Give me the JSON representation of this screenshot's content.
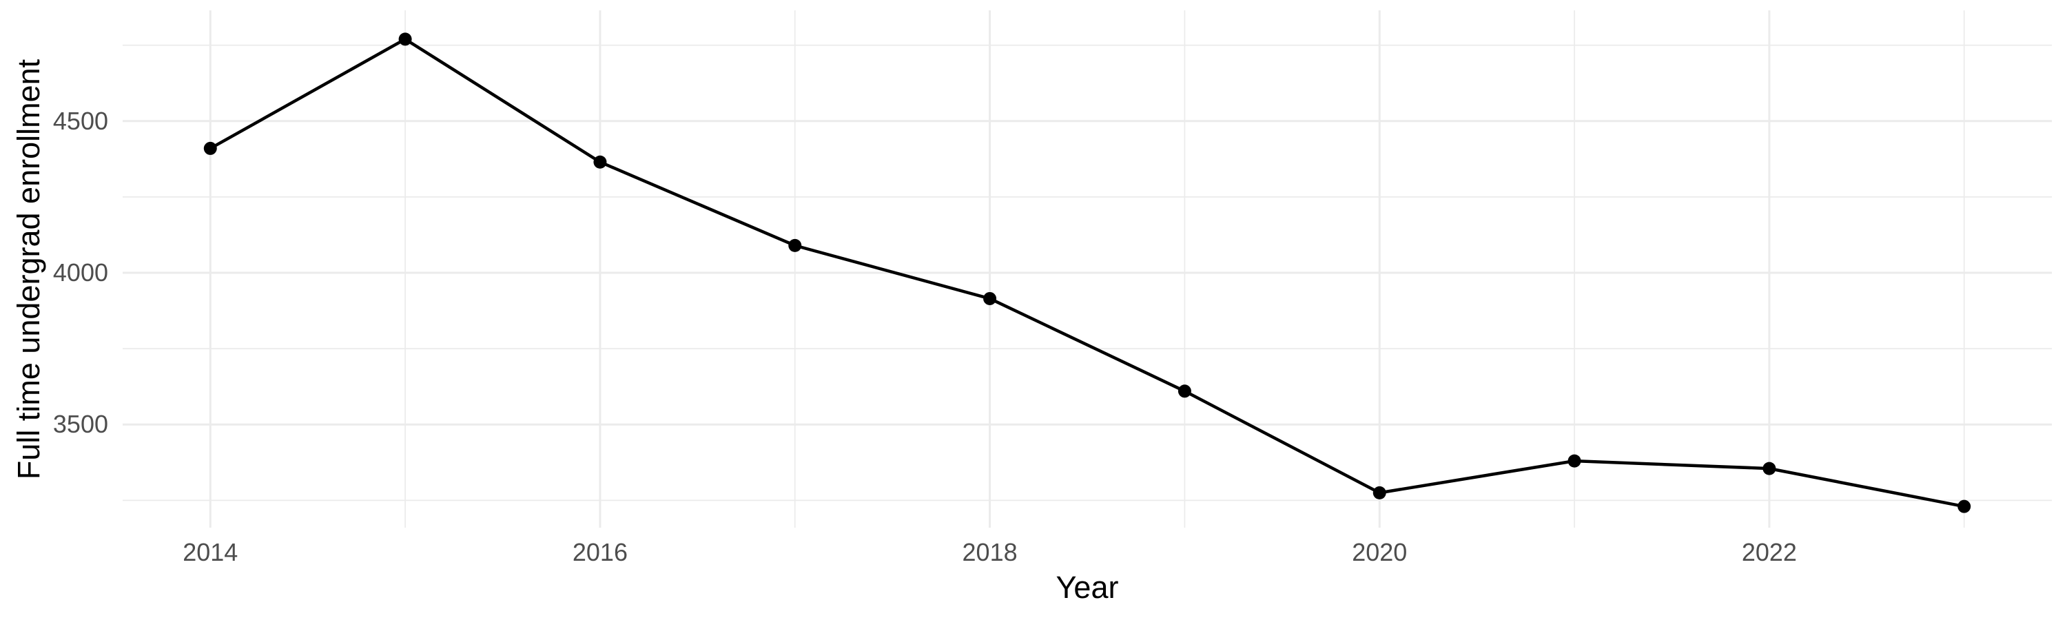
{
  "chart_data": {
    "type": "line",
    "title": "",
    "xlabel": "Year",
    "ylabel": "Full time undergrad enrollment",
    "series": [
      {
        "name": "Full time undergrad enrollment",
        "x": [
          2014,
          2015,
          2016,
          2017,
          2018,
          2019,
          2020,
          2021,
          2022,
          2023
        ],
        "values": [
          4410,
          4770,
          4365,
          4090,
          3915,
          3610,
          3275,
          3380,
          3355,
          3230
        ]
      }
    ],
    "xlim": [
      2013.55,
      2023.45
    ],
    "ylim": [
      3160,
      4865
    ],
    "x_major_ticks": [
      2014,
      2016,
      2018,
      2020,
      2022
    ],
    "x_major_tick_labels": [
      "2014",
      "2016",
      "2018",
      "2020",
      "2022"
    ],
    "x_minor_ticks": [
      2015,
      2017,
      2019,
      2021,
      2023
    ],
    "y_major_ticks": [
      3500,
      4000,
      4500
    ],
    "y_major_tick_labels": [
      "3500",
      "4000",
      "4500"
    ],
    "y_minor_ticks": [
      3250,
      3750,
      4250,
      4750
    ],
    "grid": "on",
    "legend": "none",
    "colors": {
      "line": "#000000",
      "point": "#000000",
      "grid": "#EBEBEB",
      "tick_label": "#4D4D4D",
      "axis_title": "#000000",
      "background": "#FFFFFF"
    }
  }
}
